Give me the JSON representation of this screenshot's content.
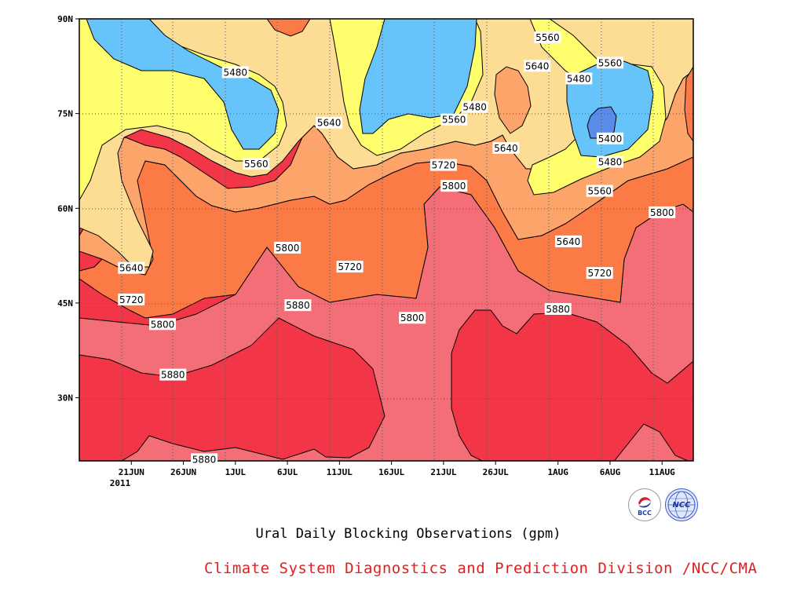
{
  "chart_data": {
    "type": "heatmap",
    "title": "Ural Daily Blocking Observations (gpm)",
    "credit": "Climate System Diagnostics and Prediction Division /NCC/CMA",
    "year_label": "2011",
    "y_ticks": [
      "30N",
      "45N",
      "60N",
      "75N",
      "90N"
    ],
    "y_range": [
      20,
      90
    ],
    "x_ticks": [
      "21JUN",
      "26JUN",
      "1JUL",
      "6JUL",
      "11JUL",
      "16JUL",
      "21JUL",
      "26JUL",
      "1AUG",
      "6AUG",
      "11AUG"
    ],
    "x_range": [
      "2011-06-16",
      "2011-08-14"
    ],
    "grid": "dotted",
    "contour_levels": [
      5400,
      5480,
      5560,
      5640,
      5720,
      5800,
      5880
    ],
    "fill_colors": {
      "below_5400": "#5a8be8",
      "5400_5480": "#66c4fa",
      "5480_5560": "#ffff6e",
      "5560_5640": "#fddc94",
      "5640_5720": "#fda46a",
      "5720_5800": "#fc7a45",
      "5800_5880": "#f46e78",
      "above_5880": "#f23648"
    },
    "contour_labels": [
      {
        "text": "5480",
        "date": "2011-07-01",
        "lat": 81.5
      },
      {
        "text": "5560",
        "date": "2011-07-03",
        "lat": 67
      },
      {
        "text": "5640",
        "date": "2011-07-10",
        "lat": 73.5
      },
      {
        "text": "5480",
        "date": "2011-07-24",
        "lat": 76
      },
      {
        "text": "5560",
        "date": "2011-07-22",
        "lat": 74
      },
      {
        "text": "5560",
        "date": "2011-07-31",
        "lat": 87
      },
      {
        "text": "5640",
        "date": "2011-07-30",
        "lat": 82.5
      },
      {
        "text": "5560",
        "date": "2011-08-06",
        "lat": 83
      },
      {
        "text": "5480",
        "date": "2011-08-03",
        "lat": 80.5
      },
      {
        "text": "5400",
        "date": "2011-08-06",
        "lat": 71
      },
      {
        "text": "5480",
        "date": "2011-08-06",
        "lat": 67.3
      },
      {
        "text": "5560",
        "date": "2011-08-05",
        "lat": 62.7
      },
      {
        "text": "5640",
        "date": "2011-07-27",
        "lat": 69.5
      },
      {
        "text": "5720",
        "date": "2011-07-21",
        "lat": 66.8
      },
      {
        "text": "5800",
        "date": "2011-07-22",
        "lat": 63.5
      },
      {
        "text": "5800",
        "date": "2011-08-11",
        "lat": 59.3
      },
      {
        "text": "5640",
        "date": "2011-08-02",
        "lat": 54.7
      },
      {
        "text": "5720",
        "date": "2011-08-05",
        "lat": 49.7
      },
      {
        "text": "5640",
        "date": "2011-06-21",
        "lat": 50.5
      },
      {
        "text": "5720",
        "date": "2011-06-21",
        "lat": 45.5
      },
      {
        "text": "5800",
        "date": "2011-06-24",
        "lat": 41.6
      },
      {
        "text": "5880",
        "date": "2011-06-25",
        "lat": 33.6
      },
      {
        "text": "5800",
        "date": "2011-07-06",
        "lat": 53.7
      },
      {
        "text": "5720",
        "date": "2011-07-12",
        "lat": 50.7
      },
      {
        "text": "5880",
        "date": "2011-07-07",
        "lat": 44.6
      },
      {
        "text": "5800",
        "date": "2011-07-18",
        "lat": 42.6
      },
      {
        "text": "5880",
        "date": "2011-08-01",
        "lat": 44.0
      },
      {
        "text": "5880",
        "date": "2011-06-28",
        "lat": 20.2
      }
    ]
  },
  "logos": {
    "bcc": "BCC",
    "ncc": "NCC"
  }
}
